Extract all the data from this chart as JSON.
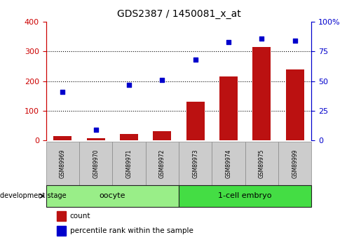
{
  "title": "GDS2387 / 1450081_x_at",
  "samples": [
    "GSM89969",
    "GSM89970",
    "GSM89971",
    "GSM89972",
    "GSM89973",
    "GSM89974",
    "GSM89975",
    "GSM89999"
  ],
  "counts": [
    15,
    8,
    22,
    30,
    130,
    215,
    315,
    240
  ],
  "percentiles": [
    41,
    9,
    47,
    51,
    68,
    83,
    86,
    84
  ],
  "groups": [
    {
      "label": "oocyte",
      "start": 0,
      "end": 4,
      "color": "#99ee88"
    },
    {
      "label": "1-cell embryo",
      "start": 4,
      "end": 8,
      "color": "#44dd44"
    }
  ],
  "ylim_left": [
    0,
    400
  ],
  "ylim_right": [
    0,
    100
  ],
  "yticks_left": [
    0,
    100,
    200,
    300,
    400
  ],
  "yticks_right": [
    0,
    25,
    50,
    75,
    100
  ],
  "bar_color": "#bb1111",
  "scatter_color": "#0000cc",
  "xlabel_color": "#cc0000",
  "ylabel_right_color": "#0000cc",
  "legend_count_color": "#bb1111",
  "legend_pct_color": "#0000cc",
  "dev_stage_label": "development stage",
  "legend_count_label": "count",
  "legend_pct_label": "percentile rank within the sample",
  "xtick_bg": "#cccccc",
  "xtick_border": "#888888"
}
